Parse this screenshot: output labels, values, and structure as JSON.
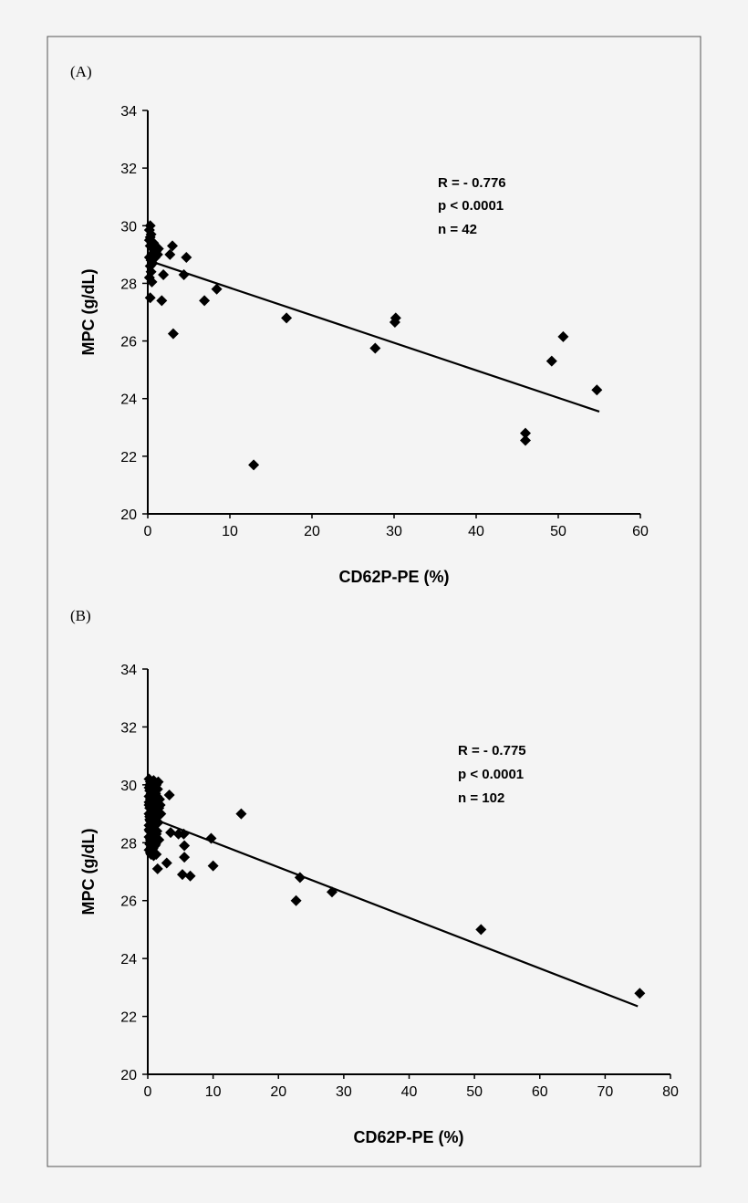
{
  "chart_data": [
    {
      "type": "scatter",
      "panel_label": "(A)",
      "xlabel": "CD62P-PE (%)",
      "ylabel": "MPC (g/dL)",
      "xlim": [
        0,
        60
      ],
      "ylim": [
        20,
        34
      ],
      "xticks": [
        "0",
        "10",
        "20",
        "30",
        "40",
        "50",
        "60"
      ],
      "yticks": [
        "20",
        "22",
        "24",
        "26",
        "28",
        "30",
        "32",
        "34"
      ],
      "grid": false,
      "marker": "diamond",
      "color": "#000000",
      "stats": [
        "R  = - 0.776",
        "p < 0.0001",
        "n = 42"
      ],
      "regression": {
        "x": [
          0,
          55
        ],
        "y": [
          28.8,
          23.55
        ]
      },
      "points": [
        [
          0.3,
          30.0
        ],
        [
          0.2,
          29.85
        ],
        [
          0.4,
          29.7
        ],
        [
          0.2,
          29.5
        ],
        [
          0.5,
          29.4
        ],
        [
          0.3,
          29.3
        ],
        [
          0.6,
          29.2
        ],
        [
          0.5,
          29.0
        ],
        [
          0.8,
          29.1
        ],
        [
          1.0,
          29.1
        ],
        [
          1.2,
          29.0
        ],
        [
          0.2,
          28.9
        ],
        [
          0.4,
          28.8
        ],
        [
          0.3,
          28.6
        ],
        [
          0.6,
          28.7
        ],
        [
          0.4,
          28.4
        ],
        [
          0.2,
          28.2
        ],
        [
          0.5,
          28.05
        ],
        [
          0.3,
          29.6
        ],
        [
          0.7,
          29.4
        ],
        [
          0.9,
          28.9
        ],
        [
          1.3,
          29.2
        ],
        [
          3.0,
          29.3
        ],
        [
          2.7,
          29.0
        ],
        [
          4.7,
          28.9
        ],
        [
          1.9,
          28.3
        ],
        [
          4.4,
          28.3
        ],
        [
          8.4,
          27.8
        ],
        [
          6.9,
          27.4
        ],
        [
          1.7,
          27.4
        ],
        [
          0.3,
          27.5
        ],
        [
          3.1,
          26.25
        ],
        [
          16.9,
          26.8
        ],
        [
          12.9,
          21.7
        ],
        [
          27.7,
          25.75
        ],
        [
          30.1,
          26.65
        ],
        [
          30.2,
          26.8
        ],
        [
          46.0,
          22.8
        ],
        [
          46.0,
          22.55
        ],
        [
          49.2,
          25.3
        ],
        [
          50.6,
          26.15
        ],
        [
          54.7,
          24.3
        ]
      ]
    },
    {
      "type": "scatter",
      "panel_label": "(B)",
      "xlabel": "CD62P-PE (%)",
      "ylabel": "MPC (g/dL)",
      "xlim": [
        0,
        80
      ],
      "ylim": [
        20,
        34
      ],
      "xticks": [
        "0",
        "10",
        "20",
        "30",
        "40",
        "50",
        "60",
        "70",
        "80"
      ],
      "yticks": [
        "20",
        "22",
        "24",
        "26",
        "28",
        "30",
        "32",
        "34"
      ],
      "grid": false,
      "marker": "diamond",
      "color": "#000000",
      "stats": [
        "R  = - 0.775",
        "p < 0.0001",
        "n = 102"
      ],
      "regression": {
        "x": [
          0,
          75
        ],
        "y": [
          28.9,
          22.35
        ]
      },
      "points": [
        [
          14.3,
          29.0
        ],
        [
          3.3,
          29.65
        ],
        [
          9.7,
          28.15
        ],
        [
          10.0,
          27.2
        ],
        [
          5.5,
          28.3
        ],
        [
          4.7,
          28.3
        ],
        [
          3.5,
          28.35
        ],
        [
          5.6,
          27.9
        ],
        [
          5.6,
          27.5
        ],
        [
          5.3,
          26.9
        ],
        [
          6.5,
          26.85
        ],
        [
          2.9,
          27.3
        ],
        [
          1.5,
          27.1
        ],
        [
          22.7,
          26.0
        ],
        [
          23.3,
          26.8
        ],
        [
          28.2,
          26.3
        ],
        [
          51.0,
          25.0
        ],
        [
          75.3,
          22.8
        ],
        [
          0.5,
          27.6
        ],
        [
          1.7,
          28.1
        ],
        [
          0.2,
          30.2
        ],
        [
          0.4,
          30.1
        ],
        [
          0.6,
          30.0
        ],
        [
          0.2,
          29.9
        ],
        [
          0.8,
          29.95
        ],
        [
          1.0,
          30.05
        ],
        [
          1.3,
          30.0
        ],
        [
          1.6,
          30.1
        ],
        [
          0.3,
          29.8
        ],
        [
          0.5,
          29.7
        ],
        [
          0.9,
          29.75
        ],
        [
          1.2,
          29.7
        ],
        [
          0.2,
          29.6
        ],
        [
          0.4,
          29.5
        ],
        [
          0.7,
          29.55
        ],
        [
          1.0,
          29.5
        ],
        [
          1.4,
          29.6
        ],
        [
          1.8,
          29.5
        ],
        [
          0.2,
          29.4
        ],
        [
          0.5,
          29.3
        ],
        [
          0.8,
          29.35
        ],
        [
          1.1,
          29.3
        ],
        [
          0.3,
          29.2
        ],
        [
          0.6,
          29.1
        ],
        [
          0.9,
          29.15
        ],
        [
          1.3,
          29.1
        ],
        [
          1.7,
          29.2
        ],
        [
          2.0,
          29.0
        ],
        [
          0.2,
          29.0
        ],
        [
          0.4,
          28.9
        ],
        [
          0.7,
          28.95
        ],
        [
          1.0,
          28.85
        ],
        [
          1.5,
          28.9
        ],
        [
          0.3,
          28.8
        ],
        [
          0.6,
          28.7
        ],
        [
          0.9,
          28.75
        ],
        [
          1.2,
          28.65
        ],
        [
          0.2,
          28.6
        ],
        [
          0.5,
          28.5
        ],
        [
          0.8,
          28.55
        ],
        [
          1.1,
          28.45
        ],
        [
          1.4,
          28.4
        ],
        [
          0.3,
          28.4
        ],
        [
          0.6,
          28.3
        ],
        [
          0.9,
          28.25
        ],
        [
          1.2,
          28.2
        ],
        [
          0.2,
          28.2
        ],
        [
          0.4,
          28.1
        ],
        [
          0.7,
          28.0
        ],
        [
          1.0,
          28.05
        ],
        [
          0.3,
          27.95
        ],
        [
          0.5,
          27.85
        ],
        [
          0.8,
          27.8
        ],
        [
          1.1,
          27.9
        ],
        [
          0.2,
          27.75
        ],
        [
          0.4,
          27.65
        ],
        [
          0.6,
          27.7
        ],
        [
          1.3,
          27.6
        ],
        [
          0.9,
          27.55
        ],
        [
          0.3,
          30.0
        ],
        [
          0.6,
          29.85
        ],
        [
          1.5,
          29.85
        ],
        [
          0.4,
          29.35
        ],
        [
          0.7,
          29.25
        ],
        [
          1.6,
          28.7
        ],
        [
          0.5,
          28.65
        ],
        [
          0.8,
          28.35
        ],
        [
          1.3,
          28.3
        ],
        [
          0.3,
          28.0
        ],
        [
          0.6,
          27.75
        ],
        [
          0.2,
          29.3
        ],
        [
          0.9,
          30.15
        ],
        [
          1.1,
          29.05
        ],
        [
          0.4,
          28.75
        ],
        [
          0.7,
          28.15
        ],
        [
          1.0,
          28.6
        ],
        [
          1.9,
          29.3
        ],
        [
          0.5,
          29.95
        ],
        [
          0.2,
          28.45
        ],
        [
          1.2,
          27.95
        ],
        [
          0.8,
          29.6
        ],
        [
          0.3,
          28.9
        ]
      ]
    }
  ]
}
